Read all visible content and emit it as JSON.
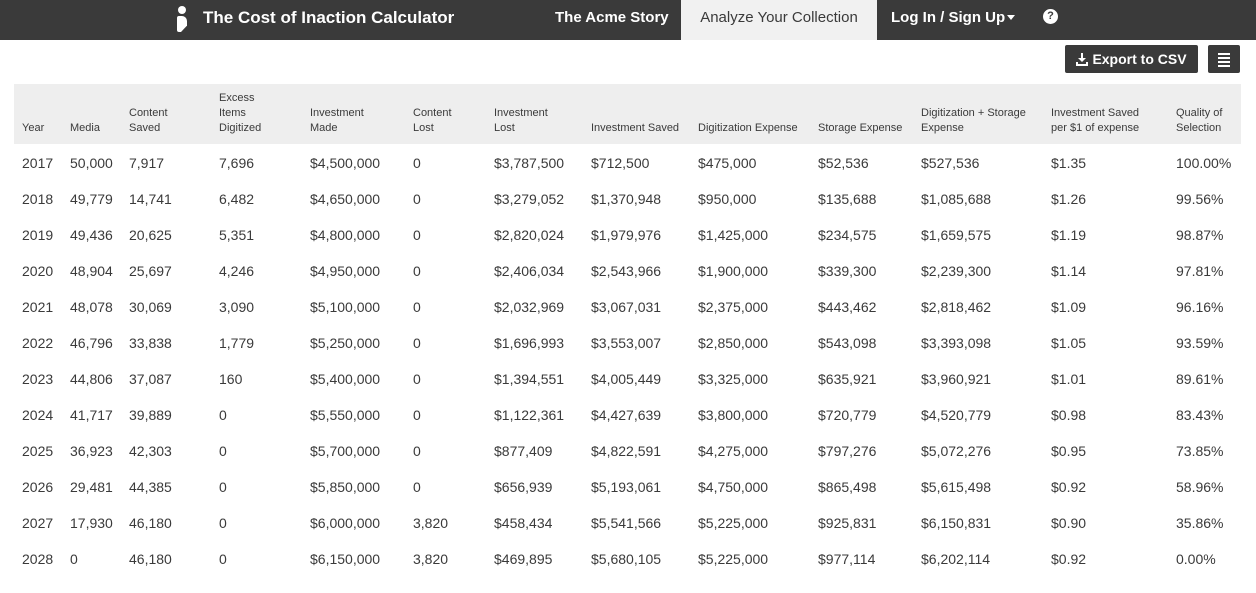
{
  "header": {
    "app_title": "The Cost of Inaction Calculator",
    "nav": {
      "story": "The Acme Story",
      "analyze": "Analyze Your Collection",
      "login": "Log In / Sign Up",
      "help_glyph": "?"
    },
    "icons": {
      "logo": "logo-icon",
      "help": "help-icon",
      "caret": "caret-down-icon"
    }
  },
  "toolbar": {
    "export_label": "Export to CSV",
    "export_icon": "download-icon",
    "menu_icon": "column-menu-icon"
  },
  "table": {
    "columns": [
      [
        "Year"
      ],
      [
        "Media"
      ],
      [
        "Content",
        "Saved"
      ],
      [
        "Excess",
        "Items",
        "Digitized"
      ],
      [
        "Investment",
        "Made"
      ],
      [
        "Content",
        "Lost"
      ],
      [
        "Investment",
        "Lost"
      ],
      [
        "Investment Saved"
      ],
      [
        "Digitization Expense"
      ],
      [
        "Storage Expense"
      ],
      [
        "Digitization + Storage",
        "Expense"
      ],
      [
        "Investment Saved",
        "per $1 of expense"
      ],
      [
        "Quality of",
        "Selection"
      ]
    ],
    "rows": [
      [
        "2017",
        "50,000",
        "7,917",
        "7,696",
        "$4,500,000",
        "0",
        "$3,787,500",
        "$712,500",
        "$475,000",
        "$52,536",
        "$527,536",
        "$1.35",
        "100.00%"
      ],
      [
        "2018",
        "49,779",
        "14,741",
        "6,482",
        "$4,650,000",
        "0",
        "$3,279,052",
        "$1,370,948",
        "$950,000",
        "$135,688",
        "$1,085,688",
        "$1.26",
        "99.56%"
      ],
      [
        "2019",
        "49,436",
        "20,625",
        "5,351",
        "$4,800,000",
        "0",
        "$2,820,024",
        "$1,979,976",
        "$1,425,000",
        "$234,575",
        "$1,659,575",
        "$1.19",
        "98.87%"
      ],
      [
        "2020",
        "48,904",
        "25,697",
        "4,246",
        "$4,950,000",
        "0",
        "$2,406,034",
        "$2,543,966",
        "$1,900,000",
        "$339,300",
        "$2,239,300",
        "$1.14",
        "97.81%"
      ],
      [
        "2021",
        "48,078",
        "30,069",
        "3,090",
        "$5,100,000",
        "0",
        "$2,032,969",
        "$3,067,031",
        "$2,375,000",
        "$443,462",
        "$2,818,462",
        "$1.09",
        "96.16%"
      ],
      [
        "2022",
        "46,796",
        "33,838",
        "1,779",
        "$5,250,000",
        "0",
        "$1,696,993",
        "$3,553,007",
        "$2,850,000",
        "$543,098",
        "$3,393,098",
        "$1.05",
        "93.59%"
      ],
      [
        "2023",
        "44,806",
        "37,087",
        "160",
        "$5,400,000",
        "0",
        "$1,394,551",
        "$4,005,449",
        "$3,325,000",
        "$635,921",
        "$3,960,921",
        "$1.01",
        "89.61%"
      ],
      [
        "2024",
        "41,717",
        "39,889",
        "0",
        "$5,550,000",
        "0",
        "$1,122,361",
        "$4,427,639",
        "$3,800,000",
        "$720,779",
        "$4,520,779",
        "$0.98",
        "83.43%"
      ],
      [
        "2025",
        "36,923",
        "42,303",
        "0",
        "$5,700,000",
        "0",
        "$877,409",
        "$4,822,591",
        "$4,275,000",
        "$797,276",
        "$5,072,276",
        "$0.95",
        "73.85%"
      ],
      [
        "2026",
        "29,481",
        "44,385",
        "0",
        "$5,850,000",
        "0",
        "$656,939",
        "$5,193,061",
        "$4,750,000",
        "$865,498",
        "$5,615,498",
        "$0.92",
        "58.96%"
      ],
      [
        "2027",
        "17,930",
        "46,180",
        "0",
        "$6,000,000",
        "3,820",
        "$458,434",
        "$5,541,566",
        "$5,225,000",
        "$925,831",
        "$6,150,831",
        "$0.90",
        "35.86%"
      ],
      [
        "2028",
        "0",
        "46,180",
        "0",
        "$6,150,000",
        "3,820",
        "$469,895",
        "$5,680,105",
        "$5,225,000",
        "$977,114",
        "$6,202,114",
        "$0.92",
        "0.00%"
      ]
    ]
  },
  "colors": {
    "topbar": "#3a3a3a",
    "active_tab": "#f1f1f1",
    "header_row": "#eeeeee",
    "text": "#3a3a3a"
  }
}
